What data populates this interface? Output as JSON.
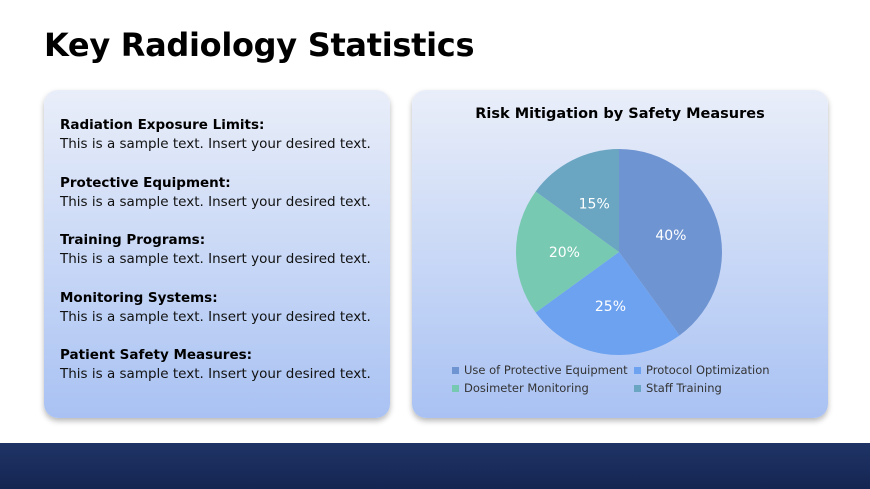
{
  "title": "Key Radiology Statistics",
  "stats": [
    {
      "heading": "Radiation Exposure Limits:",
      "text": "This is a sample text. Insert your desired text."
    },
    {
      "heading": "Protective Equipment:",
      "text": "This is a sample text. Insert your desired text."
    },
    {
      "heading": "Training Programs:",
      "text": "This is a sample text. Insert your desired text."
    },
    {
      "heading": "Monitoring Systems:",
      "text": "This is a sample text. Insert your desired text."
    },
    {
      "heading": "Patient Safety Measures:",
      "text": "This is a sample text. Insert your desired text."
    }
  ],
  "chart_data": {
    "type": "pie",
    "title": "Risk Mitigation by Safety Measures",
    "categories": [
      "Use of Protective Equipment",
      "Protocol Optimization",
      "Dosimeter Monitoring",
      "Staff Training"
    ],
    "values": [
      40,
      25,
      20,
      15
    ],
    "labels": [
      "40%",
      "25%",
      "20%",
      "15%"
    ],
    "colors": [
      "#6f94d2",
      "#6ca2f0",
      "#78c9b1",
      "#6aa5c2"
    ],
    "legend_position": "bottom"
  }
}
